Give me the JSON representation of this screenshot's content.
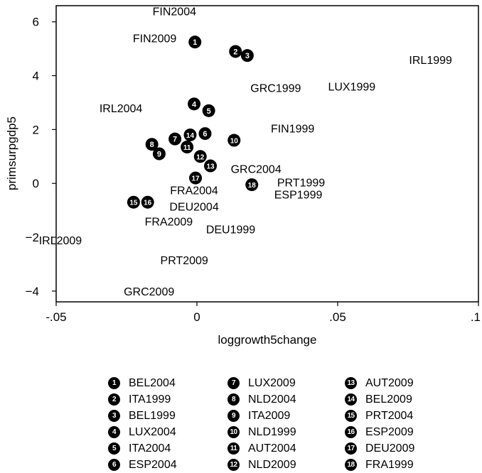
{
  "chart_data": {
    "type": "scatter",
    "xlabel": "loggrowth5change",
    "ylabel": "primsurpgdp5",
    "xlim": [
      -0.05,
      0.1
    ],
    "ylim": [
      -4.4,
      6.6
    ],
    "xticks": [
      -0.05,
      0,
      0.05,
      0.1
    ],
    "xtick_labels": [
      "-.05",
      "0",
      ".05",
      ".1"
    ],
    "yticks": [
      -4,
      -2,
      0,
      2,
      4,
      6
    ],
    "ytick_labels": [
      "−4",
      "−2",
      "0",
      "2",
      "4",
      "6"
    ],
    "grid": false,
    "legend_position": "bottom",
    "text_points": [
      {
        "label": "FIN2004",
        "x": -0.008,
        "y": 6.4
      },
      {
        "label": "FIN2009",
        "x": -0.015,
        "y": 5.4
      },
      {
        "label": "IRL1999",
        "x": 0.083,
        "y": 4.6
      },
      {
        "label": "GRC1999",
        "x": 0.028,
        "y": 3.55
      },
      {
        "label": "LUX1999",
        "x": 0.055,
        "y": 3.6
      },
      {
        "label": "IRL2004",
        "x": -0.027,
        "y": 2.8
      },
      {
        "label": "FIN1999",
        "x": 0.034,
        "y": 2.05
      },
      {
        "label": "GRC2004",
        "x": 0.021,
        "y": 0.55
      },
      {
        "label": "PRT1999",
        "x": 0.037,
        "y": 0.05
      },
      {
        "label": "ESP1999",
        "x": 0.036,
        "y": -0.4
      },
      {
        "label": "FRA2004",
        "x": -0.001,
        "y": -0.25
      },
      {
        "label": "DEU2004",
        "x": -0.001,
        "y": -0.85
      },
      {
        "label": "FRA2009",
        "x": -0.01,
        "y": -1.4
      },
      {
        "label": "DEU1999",
        "x": 0.012,
        "y": -1.7
      },
      {
        "label": "IRL2009",
        "x": -0.0485,
        "y": -2.1
      },
      {
        "label": "PRT2009",
        "x": -0.0045,
        "y": -2.85
      },
      {
        "label": "GRC2009",
        "x": -0.017,
        "y": -4.0
      }
    ],
    "markers": [
      {
        "num": "1",
        "label": "BEL2004",
        "x": -0.0007,
        "y": 5.25
      },
      {
        "num": "2",
        "label": "ITA1999",
        "x": 0.0137,
        "y": 4.9
      },
      {
        "num": "3",
        "label": "BEL1999",
        "x": 0.0179,
        "y": 4.75
      },
      {
        "num": "4",
        "label": "LUX2004",
        "x": -0.001,
        "y": 2.95
      },
      {
        "num": "5",
        "label": "ITA2004",
        "x": 0.0042,
        "y": 2.7
      },
      {
        "num": "6",
        "label": "ESP2004",
        "x": 0.0029,
        "y": 1.85
      },
      {
        "num": "7",
        "label": "LUX2009",
        "x": -0.0078,
        "y": 1.65
      },
      {
        "num": "8",
        "label": "NLD2004",
        "x": -0.016,
        "y": 1.45
      },
      {
        "num": "9",
        "label": "ITA2009",
        "x": -0.0134,
        "y": 1.1
      },
      {
        "num": "10",
        "label": "NLD1999",
        "x": 0.0132,
        "y": 1.6
      },
      {
        "num": "11",
        "label": "AUT2004",
        "x": -0.0035,
        "y": 1.35
      },
      {
        "num": "12",
        "label": "NLD2009",
        "x": 0.0012,
        "y": 1.0
      },
      {
        "num": "13",
        "label": "AUT2009",
        "x": 0.0048,
        "y": 0.65
      },
      {
        "num": "14",
        "label": "BEL2009",
        "x": -0.0024,
        "y": 1.8
      },
      {
        "num": "15",
        "label": "PRT2004",
        "x": -0.0225,
        "y": -0.7
      },
      {
        "num": "16",
        "label": "ESP2009",
        "x": -0.0175,
        "y": -0.7
      },
      {
        "num": "17",
        "label": "DEU2009",
        "x": -0.0005,
        "y": 0.2
      },
      {
        "num": "18",
        "label": "FRA1999",
        "x": 0.0195,
        "y": -0.05
      }
    ]
  }
}
